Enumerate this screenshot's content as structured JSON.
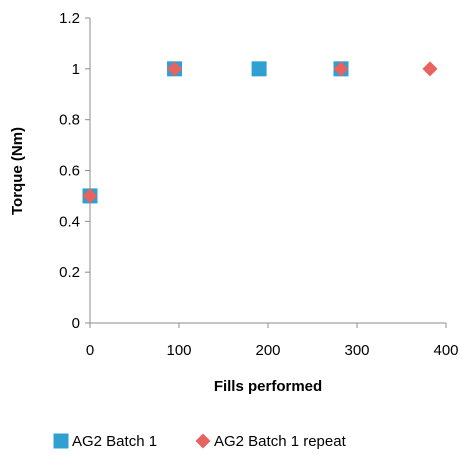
{
  "chart_data": {
    "type": "scatter",
    "title": "",
    "xlabel": "Fills performed",
    "ylabel": "Torque (Nm)",
    "xlim": [
      0,
      400
    ],
    "ylim": [
      0,
      1.2
    ],
    "x_ticks": [
      0,
      100,
      200,
      300,
      400
    ],
    "y_ticks": [
      0,
      0.2,
      0.4,
      0.6,
      0.8,
      1,
      1.2
    ],
    "x_tick_labels": [
      "0",
      "100",
      "200",
      "300",
      "400"
    ],
    "y_tick_labels": [
      "0",
      "0.2",
      "0.4",
      "0.6",
      "0.8",
      "1",
      "1.2"
    ],
    "grid": false,
    "legend_position": "bottom",
    "series": [
      {
        "name": "AG2 Batch 1",
        "marker": "square",
        "color": "#2fa0cf",
        "points": [
          [
            0,
            0.5
          ],
          [
            95,
            1
          ],
          [
            190,
            1
          ],
          [
            282,
            1
          ]
        ]
      },
      {
        "name": "AG2 Batch 1 repeat",
        "marker": "diamond",
        "color": "#e8625f",
        "points": [
          [
            0,
            0.5
          ],
          [
            95,
            1
          ],
          [
            282,
            1
          ],
          [
            382,
            1
          ]
        ]
      }
    ]
  }
}
